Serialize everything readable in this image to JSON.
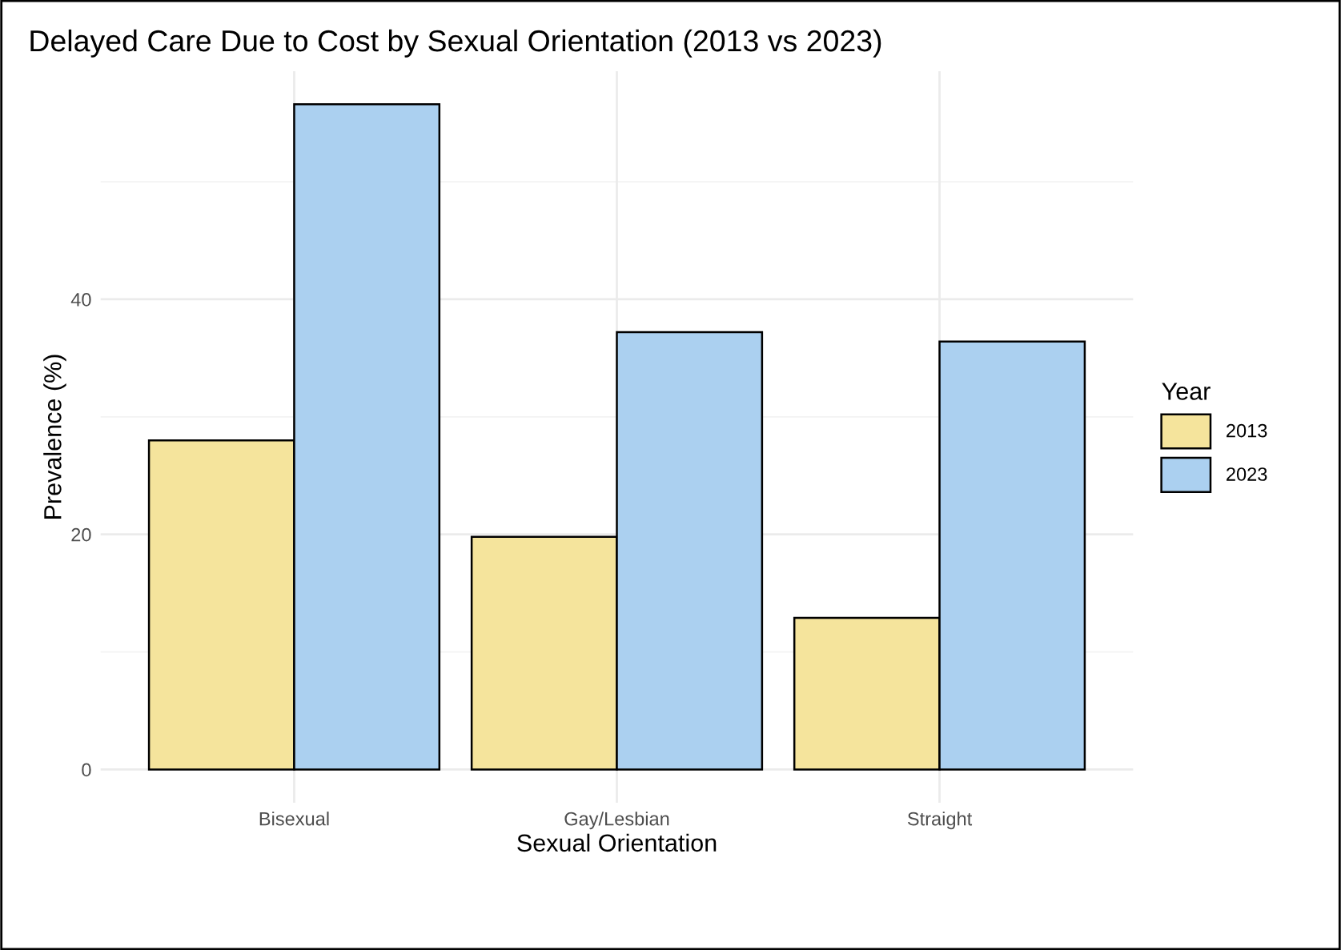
{
  "chart_data": {
    "type": "bar",
    "title": "Delayed Care Due to Cost by Sexual Orientation (2013 vs 2023)",
    "xlabel": "Sexual Orientation",
    "ylabel": "Prevalence (%)",
    "legend_title": "Year",
    "categories": [
      "Bisexual",
      "Gay/Lesbian",
      "Straight"
    ],
    "series": [
      {
        "name": "2013",
        "color": "#f5e49c",
        "values": [
          28.0,
          19.8,
          12.9
        ]
      },
      {
        "name": "2023",
        "color": "#abd0f0",
        "values": [
          56.6,
          37.2,
          36.4
        ]
      }
    ],
    "ylim": [
      -2.83,
      59.4
    ],
    "yticks": [
      0,
      20,
      40
    ],
    "grid": true,
    "legend": "right"
  }
}
